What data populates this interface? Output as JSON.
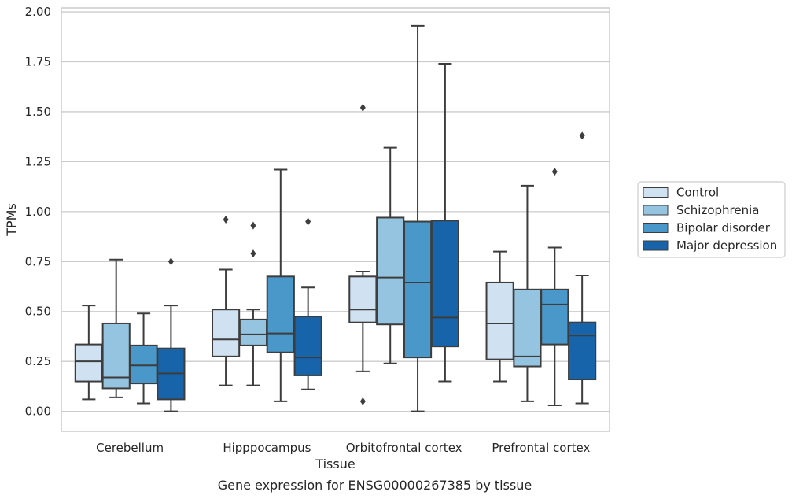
{
  "caption": "Gene expression for ENSG00000267385 by tissue",
  "chart_data": {
    "type": "box",
    "xlabel": "Tissue",
    "ylabel": "TPMs",
    "ylim": [
      -0.1,
      2.02
    ],
    "yticks": [
      0.0,
      0.25,
      0.5,
      0.75,
      1.0,
      1.25,
      1.5,
      1.75,
      2.0
    ],
    "ytick_labels": [
      "0.00",
      "0.25",
      "0.50",
      "0.75",
      "1.00",
      "1.25",
      "1.50",
      "1.75",
      "2.00"
    ],
    "grid": "horizontal",
    "legend_position": "right",
    "categories": [
      "Cerebellum",
      "Hipppocampus",
      "Orbitofrontal cortex",
      "Prefrontal cortex"
    ],
    "series": [
      {
        "name": "Control",
        "color": "#d0e1f2",
        "boxes": [
          {
            "whisker_low": 0.06,
            "q1": 0.15,
            "median": 0.25,
            "q3": 0.335,
            "whisker_high": 0.53,
            "outliers": []
          },
          {
            "whisker_low": 0.13,
            "q1": 0.275,
            "median": 0.36,
            "q3": 0.51,
            "whisker_high": 0.71,
            "outliers": [
              0.96
            ]
          },
          {
            "whisker_low": 0.2,
            "q1": 0.445,
            "median": 0.51,
            "q3": 0.675,
            "whisker_high": 0.7,
            "outliers": [
              1.52,
              0.05
            ]
          },
          {
            "whisker_low": 0.15,
            "q1": 0.26,
            "median": 0.44,
            "q3": 0.645,
            "whisker_high": 0.8,
            "outliers": []
          }
        ]
      },
      {
        "name": "Schizophrenia",
        "color": "#94c4df",
        "boxes": [
          {
            "whisker_low": 0.07,
            "q1": 0.115,
            "median": 0.17,
            "q3": 0.44,
            "whisker_high": 0.76,
            "outliers": []
          },
          {
            "whisker_low": 0.13,
            "q1": 0.33,
            "median": 0.385,
            "q3": 0.46,
            "whisker_high": 0.51,
            "outliers": [
              0.93,
              0.79
            ]
          },
          {
            "whisker_low": 0.24,
            "q1": 0.435,
            "median": 0.67,
            "q3": 0.97,
            "whisker_high": 1.32,
            "outliers": []
          },
          {
            "whisker_low": 0.05,
            "q1": 0.225,
            "median": 0.275,
            "q3": 0.61,
            "whisker_high": 1.13,
            "outliers": []
          }
        ]
      },
      {
        "name": "Bipolar disorder",
        "color": "#4a98c9",
        "boxes": [
          {
            "whisker_low": 0.04,
            "q1": 0.14,
            "median": 0.23,
            "q3": 0.33,
            "whisker_high": 0.49,
            "outliers": []
          },
          {
            "whisker_low": 0.05,
            "q1": 0.295,
            "median": 0.39,
            "q3": 0.675,
            "whisker_high": 1.21,
            "outliers": []
          },
          {
            "whisker_low": 0.0,
            "q1": 0.27,
            "median": 0.645,
            "q3": 0.95,
            "whisker_high": 1.93,
            "outliers": []
          },
          {
            "whisker_low": 0.03,
            "q1": 0.335,
            "median": 0.535,
            "q3": 0.61,
            "whisker_high": 0.82,
            "outliers": [
              1.2
            ]
          }
        ]
      },
      {
        "name": "Major depression",
        "color": "#1764ab",
        "boxes": [
          {
            "whisker_low": 0.0,
            "q1": 0.06,
            "median": 0.19,
            "q3": 0.315,
            "whisker_high": 0.53,
            "outliers": [
              0.75
            ]
          },
          {
            "whisker_low": 0.11,
            "q1": 0.18,
            "median": 0.27,
            "q3": 0.475,
            "whisker_high": 0.62,
            "outliers": [
              0.95
            ]
          },
          {
            "whisker_low": 0.15,
            "q1": 0.325,
            "median": 0.47,
            "q3": 0.955,
            "whisker_high": 1.74,
            "outliers": []
          },
          {
            "whisker_low": 0.04,
            "q1": 0.16,
            "median": 0.38,
            "q3": 0.445,
            "whisker_high": 0.68,
            "outliers": [
              1.38
            ]
          }
        ]
      }
    ]
  }
}
